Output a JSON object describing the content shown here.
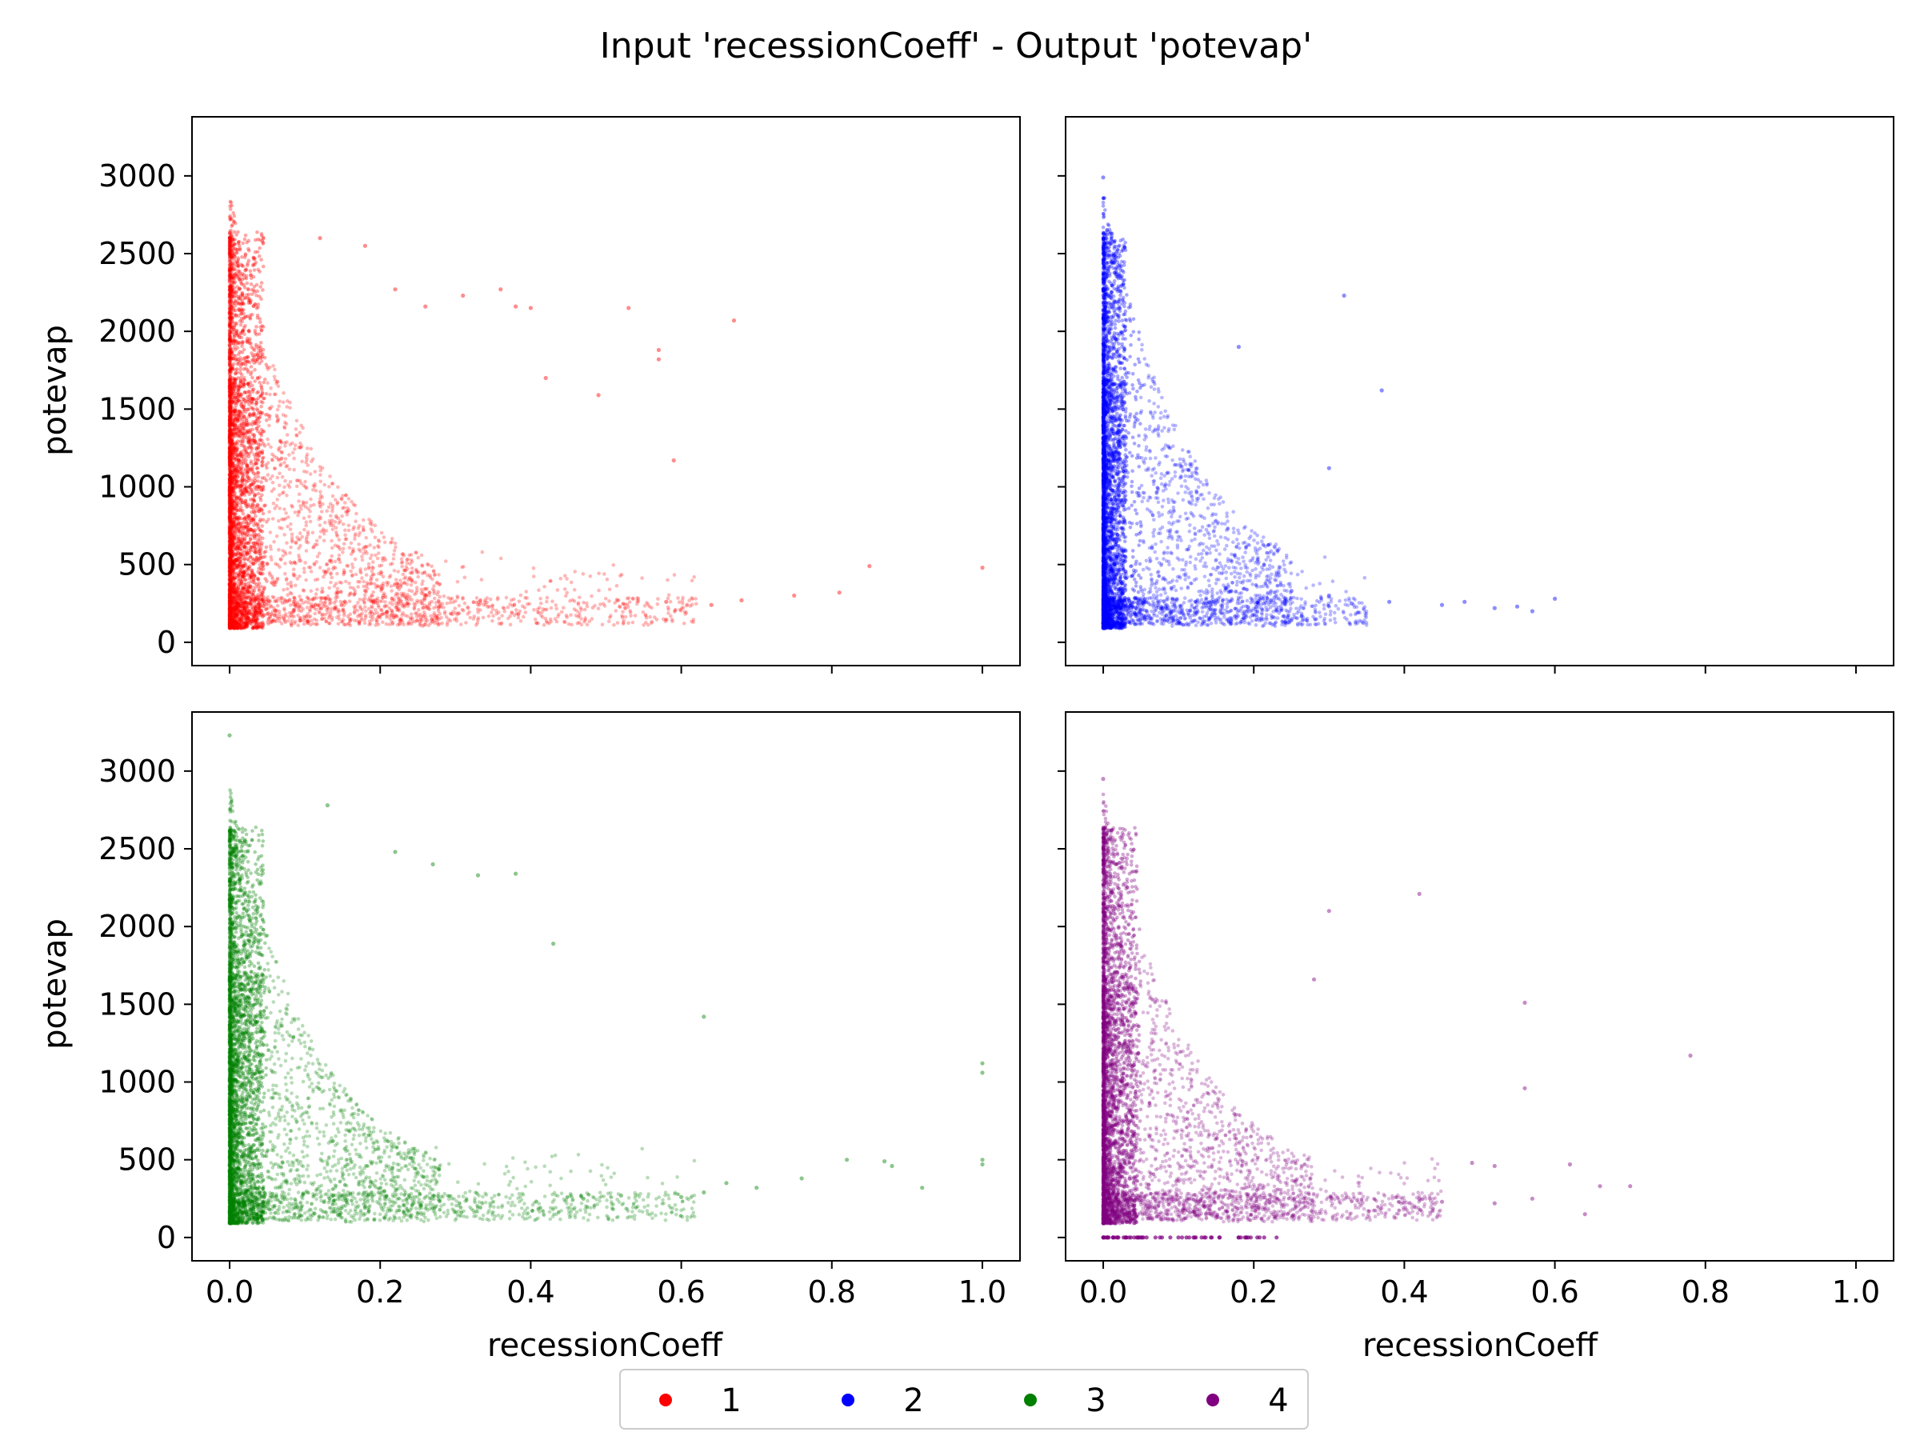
{
  "chart_data": {
    "type": "scatter",
    "title": "Input 'recessionCoeff' - Output 'potevap'",
    "xlabel": "recessionCoeff",
    "ylabel": "potevap",
    "xlim": [
      -0.05,
      1.05
    ],
    "ylim": [
      -150,
      3380
    ],
    "xticks": [
      "0.0",
      "0.2",
      "0.4",
      "0.6",
      "0.8",
      "1.0"
    ],
    "yticks": [
      "0",
      "500",
      "1000",
      "1500",
      "2000",
      "2500",
      "3000"
    ],
    "grid": false,
    "legend": {
      "placement": "bottom-center",
      "columns": 4
    },
    "panels": [
      {
        "row": 0,
        "col": 0,
        "series": "1",
        "color": "#ff0000",
        "show_xlabel": false,
        "show_ylabel": true,
        "outliers": [
          [
            0.12,
            2600
          ],
          [
            0.18,
            2550
          ],
          [
            0.22,
            2270
          ],
          [
            0.26,
            2160
          ],
          [
            0.31,
            2230
          ],
          [
            0.36,
            2270
          ],
          [
            0.38,
            2160
          ],
          [
            0.4,
            2150
          ],
          [
            0.53,
            2150
          ],
          [
            0.67,
            2070
          ],
          [
            0.57,
            1880
          ],
          [
            0.57,
            1820
          ],
          [
            0.42,
            1700
          ],
          [
            0.49,
            1590
          ],
          [
            0.59,
            1170
          ],
          [
            0.85,
            490
          ],
          [
            1.0,
            480
          ],
          [
            0.81,
            320
          ],
          [
            0.75,
            300
          ],
          [
            0.68,
            270
          ],
          [
            0.64,
            240
          ],
          [
            0.58,
            260
          ]
        ]
      },
      {
        "row": 0,
        "col": 1,
        "series": "2",
        "color": "#0000ff",
        "show_xlabel": false,
        "show_ylabel": false,
        "outliers": [
          [
            0.0,
            2990
          ],
          [
            0.32,
            2230
          ],
          [
            0.18,
            1900
          ],
          [
            0.37,
            1620
          ],
          [
            0.3,
            1120
          ],
          [
            0.25,
            330
          ],
          [
            0.3,
            300
          ],
          [
            0.33,
            250
          ],
          [
            0.38,
            260
          ],
          [
            0.45,
            240
          ],
          [
            0.48,
            260
          ],
          [
            0.52,
            220
          ],
          [
            0.55,
            230
          ],
          [
            0.6,
            280
          ],
          [
            0.57,
            200
          ]
        ]
      },
      {
        "row": 1,
        "col": 0,
        "series": "3",
        "color": "#008000",
        "show_xlabel": true,
        "show_ylabel": true,
        "outliers": [
          [
            0.0,
            3230
          ],
          [
            0.13,
            2780
          ],
          [
            0.22,
            2480
          ],
          [
            0.27,
            2400
          ],
          [
            0.33,
            2330
          ],
          [
            0.38,
            2340
          ],
          [
            0.43,
            1890
          ],
          [
            0.63,
            1420
          ],
          [
            1.0,
            1120
          ],
          [
            1.0,
            1060
          ],
          [
            0.82,
            500
          ],
          [
            0.87,
            490
          ],
          [
            0.88,
            460
          ],
          [
            0.92,
            320
          ],
          [
            1.0,
            500
          ],
          [
            1.0,
            470
          ],
          [
            0.76,
            380
          ],
          [
            0.7,
            320
          ],
          [
            0.66,
            350
          ],
          [
            0.63,
            290
          ],
          [
            0.6,
            260
          ],
          [
            0.52,
            270
          ],
          [
            0.47,
            250
          ]
        ]
      },
      {
        "row": 1,
        "col": 1,
        "series": "4",
        "color": "#800080",
        "show_xlabel": true,
        "show_ylabel": false,
        "outliers": [
          [
            0.0,
            2950
          ],
          [
            0.42,
            2210
          ],
          [
            0.28,
            1660
          ],
          [
            0.3,
            2100
          ],
          [
            0.56,
            1510
          ],
          [
            0.78,
            1170
          ],
          [
            0.56,
            960
          ],
          [
            0.62,
            470
          ],
          [
            0.49,
            480
          ],
          [
            0.52,
            460
          ],
          [
            0.66,
            330
          ],
          [
            0.7,
            330
          ],
          [
            0.57,
            250
          ],
          [
            0.64,
            150
          ],
          [
            0.45,
            230
          ],
          [
            0.42,
            250
          ],
          [
            0.52,
            220
          ]
        ]
      }
    ],
    "series": [
      {
        "name": "1",
        "color": "#ff0000"
      },
      {
        "name": "2",
        "color": "#0000ff"
      },
      {
        "name": "3",
        "color": "#008000"
      },
      {
        "name": "4",
        "color": "#800080"
      }
    ]
  }
}
